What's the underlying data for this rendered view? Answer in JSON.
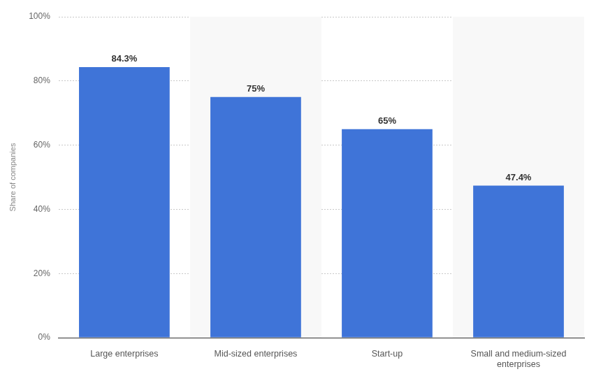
{
  "chart_data": {
    "type": "bar",
    "y_label": "Share of companies",
    "categories": [
      "Large enterprises",
      "Mid-sized enterprises",
      "Start-up",
      "Small and medium-sized enterprises"
    ],
    "values": [
      84.3,
      75,
      65,
      47.4
    ],
    "value_labels": [
      "84.3%",
      "75%",
      "65%",
      "47.4%"
    ],
    "data_labels": true,
    "color": "#3f74d8",
    "ylim": [
      0,
      100
    ],
    "yticks": [
      {
        "value": 0,
        "label": "0%"
      },
      {
        "value": 20,
        "label": "20%"
      },
      {
        "value": 40,
        "label": "40%"
      },
      {
        "value": 60,
        "label": "60%"
      },
      {
        "value": 80,
        "label": "80%"
      },
      {
        "value": 100,
        "label": "100%"
      }
    ],
    "grid": true
  }
}
